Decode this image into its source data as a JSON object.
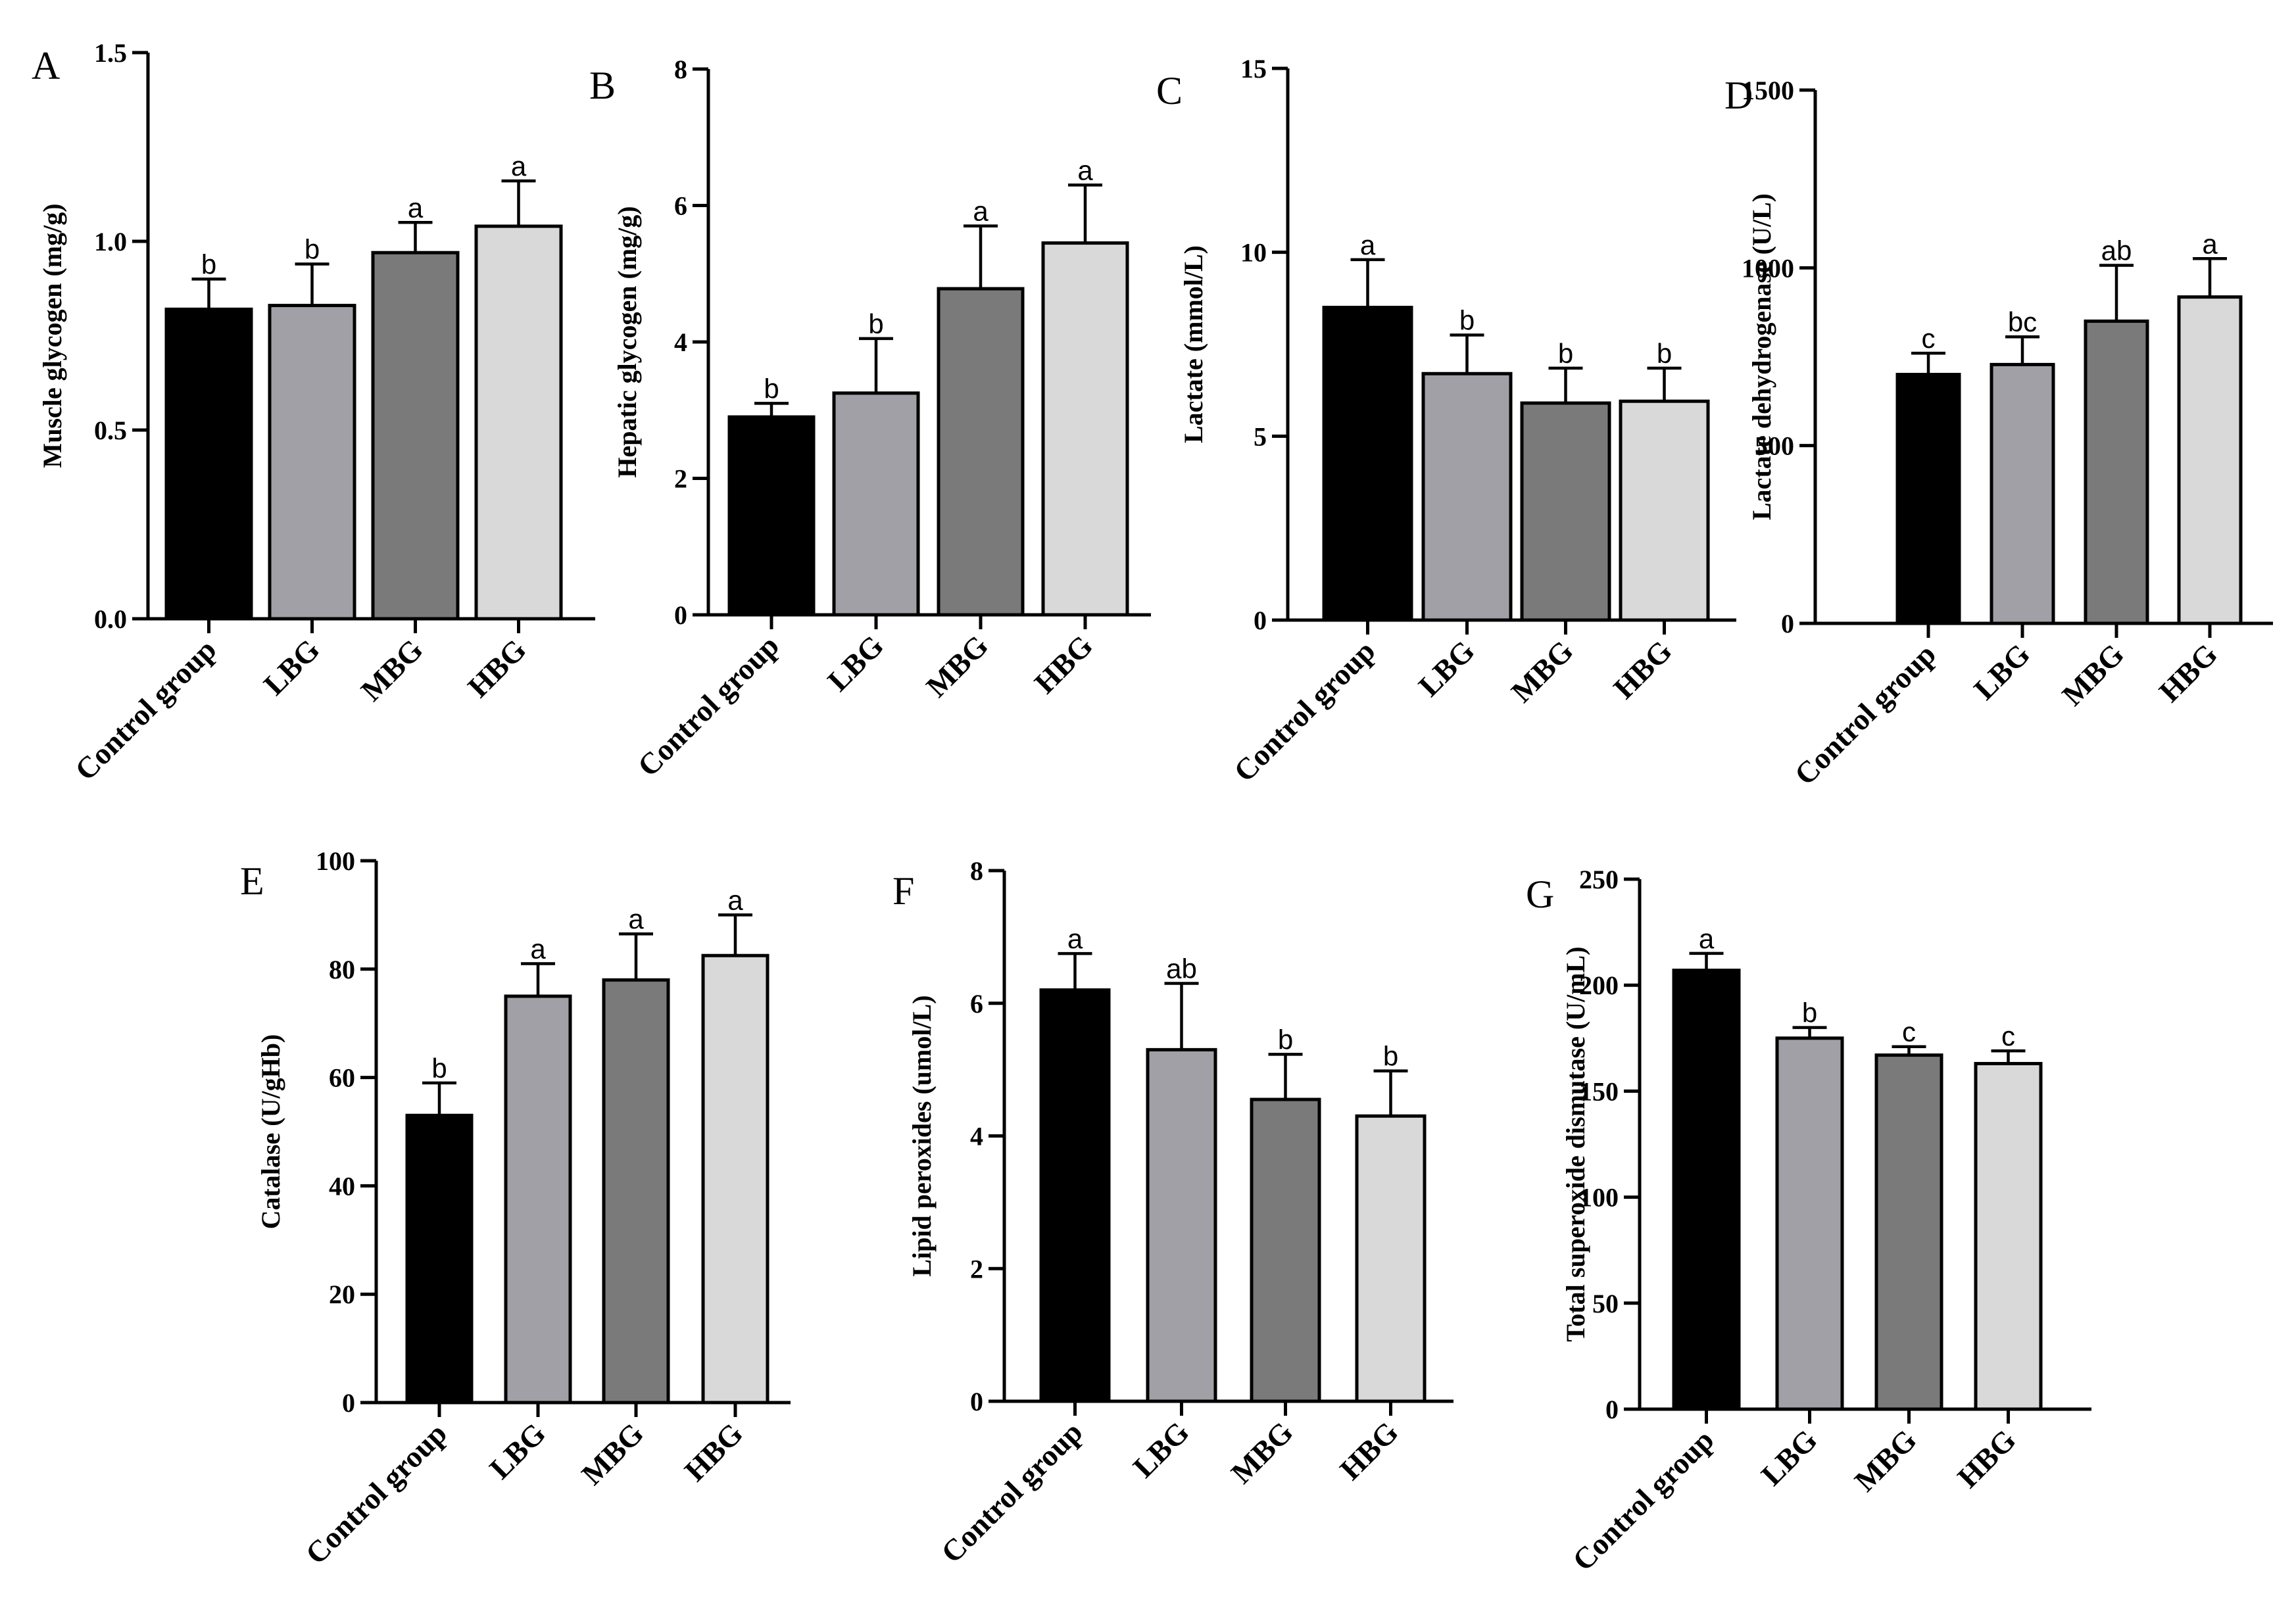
{
  "figure": {
    "colors": {
      "control": "#000000",
      "low": "#a0a0a6",
      "mid": "#7a7a7a",
      "high": "#d9d9d9"
    }
  },
  "chart_data": [
    {
      "panel": "A",
      "type": "bar",
      "ylabel": "Muscle glycogen (mg/g)",
      "categories": [
        "Control group",
        "LBG",
        "MBG",
        "HBG"
      ],
      "values": [
        0.82,
        0.83,
        0.97,
        1.04
      ],
      "errors": [
        0.08,
        0.11,
        0.08,
        0.12
      ],
      "significance": [
        "b",
        "b",
        "a",
        "a"
      ],
      "ylim": [
        0,
        1.5
      ],
      "ticks": [
        0.0,
        0.5,
        1.0,
        1.5
      ],
      "tick_labels": [
        "0.0",
        "0.5",
        "1.0",
        "1.5"
      ]
    },
    {
      "panel": "B",
      "type": "bar",
      "ylabel": "Hepatic glycogen (mg/g)",
      "categories": [
        "Control group",
        "LBG",
        "MBG",
        "HBG"
      ],
      "values": [
        2.9,
        3.25,
        4.78,
        5.45
      ],
      "errors": [
        0.2,
        0.8,
        0.92,
        0.85
      ],
      "significance": [
        "b",
        "b",
        "a",
        "a"
      ],
      "ylim": [
        0,
        8
      ],
      "ticks": [
        0,
        2,
        4,
        6,
        8
      ],
      "tick_labels": [
        "0",
        "2",
        "4",
        "6",
        "8"
      ]
    },
    {
      "panel": "C",
      "type": "bar",
      "ylabel": "Lactate (mmol/L)",
      "categories": [
        "Control group",
        "LBG",
        "MBG",
        "HBG"
      ],
      "values": [
        8.5,
        6.7,
        5.9,
        5.95
      ],
      "errors": [
        1.3,
        1.05,
        0.95,
        0.9
      ],
      "significance": [
        "a",
        "b",
        "b",
        "b"
      ],
      "ylim": [
        0,
        15
      ],
      "ticks": [
        0,
        5,
        10,
        15
      ],
      "tick_labels": [
        "0",
        "5",
        "10",
        "15"
      ]
    },
    {
      "panel": "D",
      "type": "bar",
      "ylabel": "Lactate dehydrogenase (U/L)",
      "categories": [
        "Control group",
        "LBG",
        "MBG",
        "HBG"
      ],
      "values": [
        700,
        728,
        850,
        918
      ],
      "errors": [
        60,
        78,
        157,
        108
      ],
      "significance": [
        "c",
        "bc",
        "ab",
        "a"
      ],
      "ylim": [
        0,
        1500
      ],
      "ticks": [
        0,
        500,
        1000,
        1500
      ],
      "tick_labels": [
        "0",
        "500",
        "1000",
        "1500"
      ]
    },
    {
      "panel": "E",
      "type": "bar",
      "ylabel": "Catalase (U/gHb)",
      "categories": [
        "Control group",
        "LBG",
        "MBG",
        "HBG"
      ],
      "values": [
        53,
        75,
        78,
        82.5
      ],
      "errors": [
        6,
        6,
        8.5,
        7.5
      ],
      "significance": [
        "b",
        "a",
        "a",
        "a"
      ],
      "ylim": [
        0,
        100
      ],
      "ticks": [
        0,
        20,
        40,
        60,
        80,
        100
      ],
      "tick_labels": [
        "0",
        "20",
        "40",
        "60",
        "80",
        "100"
      ]
    },
    {
      "panel": "F",
      "type": "bar",
      "ylabel": "Lipid peroxides (umol/L)",
      "categories": [
        "Control group",
        "LBG",
        "MBG",
        "HBG"
      ],
      "values": [
        6.2,
        5.3,
        4.55,
        4.3
      ],
      "errors": [
        0.55,
        1.0,
        0.68,
        0.68
      ],
      "significance": [
        "a",
        "ab",
        "b",
        "b"
      ],
      "ylim": [
        0,
        8
      ],
      "ticks": [
        0,
        2,
        4,
        6,
        8
      ],
      "tick_labels": [
        "0",
        "2",
        "4",
        "6",
        "8"
      ]
    },
    {
      "panel": "G",
      "type": "bar",
      "ylabel": "Total superoxide dismutase (U/mL)",
      "categories": [
        "Control group",
        "LBG",
        "MBG",
        "HBG"
      ],
      "values": [
        207,
        175,
        167,
        163
      ],
      "errors": [
        8,
        5,
        4,
        6
      ],
      "significance": [
        "a",
        "b",
        "c",
        "c"
      ],
      "ylim": [
        0,
        250
      ],
      "ticks": [
        0,
        50,
        100,
        150,
        200,
        250
      ],
      "tick_labels": [
        "0",
        "50",
        "100",
        "150",
        "200",
        "250"
      ]
    }
  ]
}
